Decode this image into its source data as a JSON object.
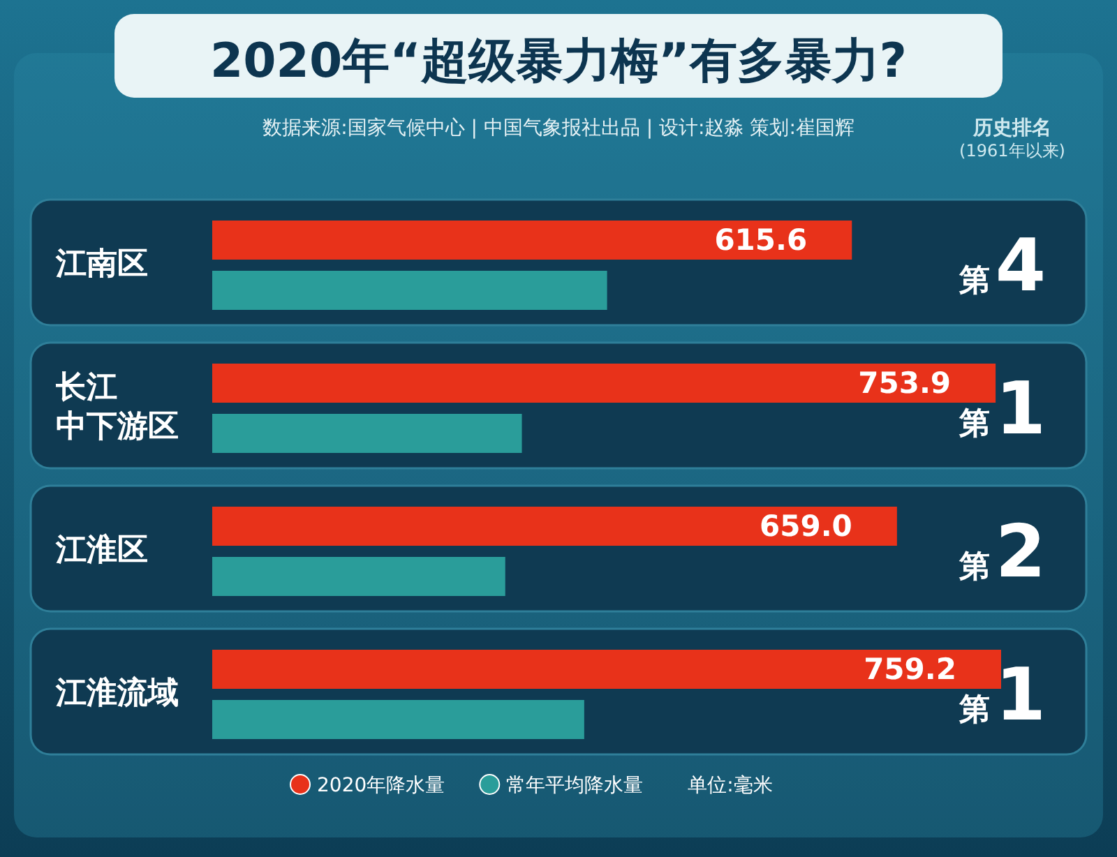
{
  "chart_data": {
    "type": "bar",
    "orientation": "horizontal",
    "title": "2020年“超级暴力梅”有多暴力?",
    "subtitle": "数据来源:国家气候中心  |  中国气象报社出品  |  设计:赵淼   策划:崔国辉",
    "categories": [
      "江南区",
      "长江中下游区",
      "江淮区",
      "江淮流域"
    ],
    "series": [
      {
        "name": "2020年降水量",
        "color": "#e8321a",
        "values": [
          615.6,
          753.9,
          659.0,
          759.2
        ],
        "value_labels": [
          "615.6",
          "753.9",
          "659.0",
          "759.2"
        ]
      },
      {
        "name": "常年平均降水量",
        "color": "#2a9d9a",
        "values": [
          380,
          298,
          282,
          358
        ]
      }
    ],
    "annotations": [
      "历史排名",
      "(1961年以来)",
      "第4",
      "第1",
      "第2",
      "第1",
      "单位:毫米"
    ],
    "legend": "bottom"
  }
}
